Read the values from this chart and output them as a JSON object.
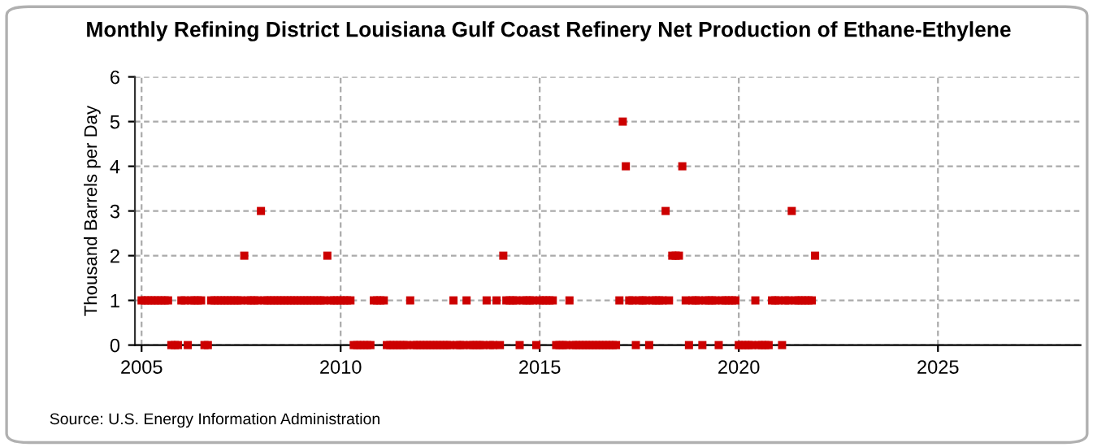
{
  "chart_data": {
    "type": "scatter",
    "title": "Monthly Refining District Louisiana Gulf Coast Refinery Net Production of Ethane-Ethylene",
    "ylabel": "Thousand Barrels per Day",
    "annotations": [
      "Source: U.S. Energy Information Administration"
    ],
    "x": [
      "2005-01",
      "2005-02",
      "2005-03",
      "2005-04",
      "2005-05",
      "2005-06",
      "2005-07",
      "2005-08",
      "2005-09",
      "2005-10",
      "2005-11",
      "2005-12",
      "2006-01",
      "2006-02",
      "2006-03",
      "2006-04",
      "2006-05",
      "2006-06",
      "2006-07",
      "2006-08",
      "2006-09",
      "2006-10",
      "2006-11",
      "2006-12",
      "2007-01",
      "2007-02",
      "2007-03",
      "2007-04",
      "2007-05",
      "2007-06",
      "2007-07",
      "2007-08",
      "2007-09",
      "2007-10",
      "2007-11",
      "2007-12",
      "2008-01",
      "2008-02",
      "2008-03",
      "2008-04",
      "2008-05",
      "2008-06",
      "2008-07",
      "2008-08",
      "2008-09",
      "2008-10",
      "2008-11",
      "2008-12",
      "2009-01",
      "2009-02",
      "2009-03",
      "2009-04",
      "2009-05",
      "2009-06",
      "2009-07",
      "2009-08",
      "2009-09",
      "2009-10",
      "2009-11",
      "2009-12",
      "2010-01",
      "2010-02",
      "2010-03",
      "2010-04",
      "2010-05",
      "2010-06",
      "2010-07",
      "2010-08",
      "2010-09",
      "2010-10",
      "2010-11",
      "2010-12",
      "2011-01",
      "2011-02",
      "2011-03",
      "2011-04",
      "2011-05",
      "2011-06",
      "2011-07",
      "2011-08",
      "2011-09",
      "2011-10",
      "2011-11",
      "2011-12",
      "2012-01",
      "2012-02",
      "2012-03",
      "2012-04",
      "2012-05",
      "2012-06",
      "2012-07",
      "2012-08",
      "2012-09",
      "2012-10",
      "2012-11",
      "2012-12",
      "2013-01",
      "2013-02",
      "2013-03",
      "2013-04",
      "2013-05",
      "2013-06",
      "2013-07",
      "2013-08",
      "2013-09",
      "2013-10",
      "2013-11",
      "2013-12",
      "2014-01",
      "2014-02",
      "2014-03",
      "2014-04",
      "2014-05",
      "2014-06",
      "2014-07",
      "2014-08",
      "2014-09",
      "2014-10",
      "2014-11",
      "2014-12",
      "2015-01",
      "2015-02",
      "2015-03",
      "2015-04",
      "2015-05",
      "2015-06",
      "2015-07",
      "2015-08",
      "2015-09",
      "2015-10",
      "2015-11",
      "2015-12",
      "2016-01",
      "2016-02",
      "2016-03",
      "2016-04",
      "2016-05",
      "2016-06",
      "2016-07",
      "2016-08",
      "2016-09",
      "2016-10",
      "2016-11",
      "2016-12",
      "2017-01",
      "2017-02",
      "2017-03",
      "2017-04",
      "2017-05",
      "2017-06",
      "2017-07",
      "2017-08",
      "2017-09",
      "2017-10",
      "2017-11",
      "2017-12",
      "2018-01",
      "2018-02",
      "2018-03",
      "2018-04",
      "2018-05",
      "2018-06",
      "2018-07",
      "2018-08",
      "2018-09",
      "2018-10",
      "2018-11",
      "2018-12",
      "2019-01",
      "2019-02",
      "2019-03",
      "2019-04",
      "2019-05",
      "2019-06",
      "2019-07",
      "2019-08",
      "2019-09",
      "2019-10",
      "2019-11",
      "2019-12",
      "2020-01",
      "2020-02",
      "2020-03",
      "2020-04",
      "2020-05",
      "2020-06",
      "2020-07",
      "2020-08",
      "2020-09",
      "2020-10",
      "2020-11",
      "2020-12",
      "2021-01",
      "2021-02",
      "2021-03",
      "2021-04",
      "2021-05",
      "2021-06",
      "2021-07",
      "2021-08",
      "2021-09",
      "2021-10",
      "2021-11",
      "2021-12"
    ],
    "series": [
      {
        "color": "#cc0000",
        "values": [
          1,
          1,
          1,
          1,
          1,
          1,
          1,
          1,
          1,
          0,
          0,
          0,
          1,
          1,
          0,
          1,
          1,
          1,
          1,
          0,
          0,
          1,
          1,
          1,
          1,
          1,
          1,
          1,
          1,
          1,
          1,
          2,
          1,
          1,
          1,
          1,
          3,
          1,
          1,
          1,
          1,
          1,
          1,
          1,
          1,
          1,
          1,
          1,
          1,
          1,
          1,
          1,
          1,
          1,
          1,
          1,
          2,
          1,
          1,
          1,
          1,
          1,
          1,
          1,
          0,
          0,
          0,
          0,
          0,
          0,
          1,
          1,
          1,
          1,
          0,
          0,
          0,
          0,
          0,
          0,
          0,
          1,
          0,
          0,
          0,
          0,
          0,
          0,
          0,
          0,
          0,
          0,
          0,
          0,
          1,
          0,
          0,
          0,
          1,
          0,
          0,
          0,
          0,
          0,
          1,
          0,
          0,
          1,
          0,
          2,
          1,
          1,
          1,
          1,
          0,
          1,
          1,
          1,
          1,
          0,
          1,
          1,
          1,
          1,
          1,
          0,
          0,
          0,
          0,
          1,
          0,
          0,
          0,
          0,
          0,
          0,
          0,
          0,
          0,
          0,
          0,
          0,
          0,
          0,
          1,
          5,
          4,
          1,
          1,
          0,
          1,
          1,
          1,
          0,
          1,
          1,
          1,
          1,
          3,
          1,
          2,
          2,
          2,
          4,
          1,
          0,
          1,
          1,
          1,
          0,
          1,
          1,
          1,
          1,
          0,
          1,
          1,
          1,
          1,
          1,
          0,
          0,
          0,
          0,
          0,
          1,
          0,
          0,
          0,
          0,
          1,
          1,
          1,
          0,
          1,
          1,
          3,
          1,
          1,
          1,
          1,
          1,
          1,
          2
        ]
      }
    ],
    "xlim": [
      "2004-11",
      "2028-08"
    ],
    "xticks": [
      {
        "value": "2005",
        "label": "2005"
      },
      {
        "value": "2010",
        "label": "2010"
      },
      {
        "value": "2015",
        "label": "2015"
      },
      {
        "value": "2020",
        "label": "2020"
      },
      {
        "value": "2025",
        "label": "2025"
      }
    ],
    "ylim": [
      0,
      6
    ],
    "yticks": [
      0,
      1,
      2,
      3,
      4,
      5,
      6
    ],
    "grid": true,
    "marker": "square",
    "legend": false
  }
}
